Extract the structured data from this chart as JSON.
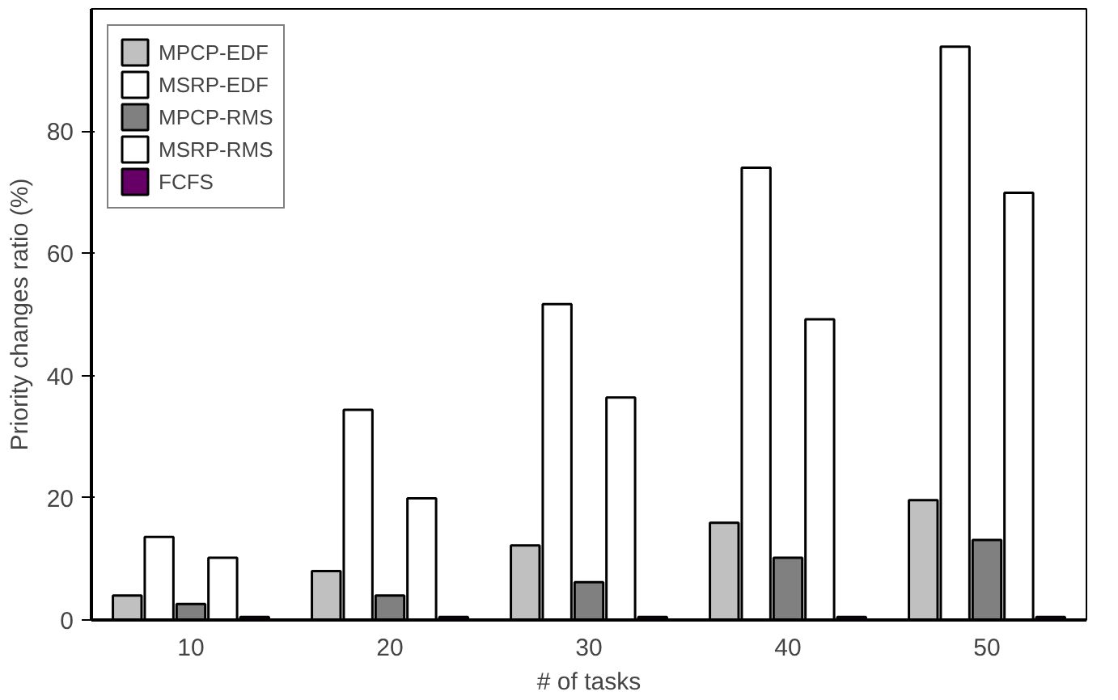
{
  "chart_data": {
    "type": "bar",
    "xlabel": "# of tasks",
    "ylabel": "Priority changes ratio (%)",
    "categories": [
      "10",
      "20",
      "30",
      "40",
      "50"
    ],
    "series": [
      {
        "name": "MPCP-EDF",
        "color": "#c0c0c0",
        "values": [
          4,
          8,
          12.2,
          15.9,
          19.6
        ]
      },
      {
        "name": "MSRP-EDF",
        "color": "#ffffff",
        "values": [
          13.6,
          34.4,
          51.7,
          74,
          93.8
        ]
      },
      {
        "name": "MPCP-RMS",
        "color": "#808080",
        "values": [
          2.6,
          4,
          6.2,
          10.2,
          13.1
        ]
      },
      {
        "name": "MSRP-RMS",
        "color": "#ffffff",
        "values": [
          10.2,
          19.9,
          36.4,
          49.2,
          69.9
        ]
      },
      {
        "name": "FCFS",
        "color": "#660066",
        "values": [
          0.5,
          0.5,
          0.5,
          0.5,
          0.5
        ]
      }
    ],
    "ylim": [
      0,
      100
    ],
    "yticks": [
      0,
      20,
      40,
      60,
      80
    ],
    "grid": false,
    "legend": "top left"
  }
}
